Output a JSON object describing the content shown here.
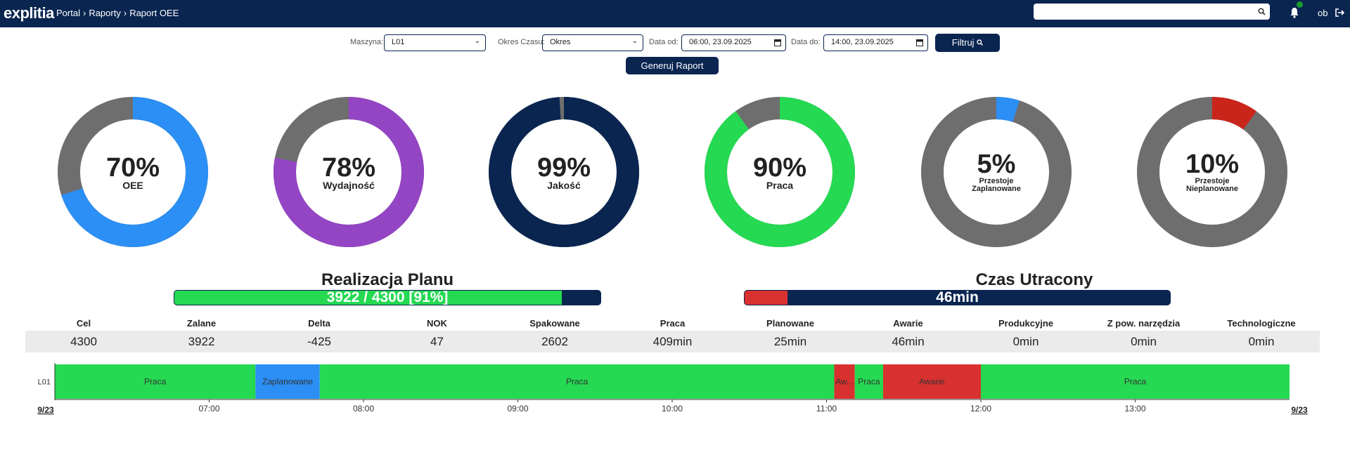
{
  "header": {
    "logo": "explitia",
    "breadcrumb": [
      "Portal",
      "Raporty",
      "Raport OEE"
    ],
    "user": "ob"
  },
  "filters": {
    "machine_label": "Maszyna:",
    "machine": "L01",
    "period_label": "Okres Czasu:",
    "period": "Okres",
    "from_label": "Data od:",
    "from": "06:00, 23.09.2025",
    "to_label": "Data do:",
    "to": "14:00, 23.09.2025",
    "filter_button": "Filtruj",
    "report_button": "Generuj Raport"
  },
  "gauges": [
    {
      "value": 70,
      "value_label": "70%",
      "label": "OEE",
      "color": "#2b8ff5"
    },
    {
      "value": 78,
      "value_label": "78%",
      "label": "Wydajność",
      "color": "#9345c4"
    },
    {
      "value": 99,
      "value_label": "99%",
      "label": "Jakość",
      "color": "#0a2550"
    },
    {
      "value": 90,
      "value_label": "90%",
      "label": "Praca",
      "color": "#25d952"
    },
    {
      "value": 5,
      "value_label": "5%",
      "label": "Przestoje Zaplanowane",
      "color": "#2b8ff5"
    },
    {
      "value": 10,
      "value_label": "10%",
      "label": "Przestoje Nieplanowane",
      "color": "#c9251a"
    }
  ],
  "plan": {
    "title": "Realizacja Planu",
    "value": 91,
    "value_label": "3922 / 4300 [91%]",
    "color": "#25d952"
  },
  "lost": {
    "title": "Czas Utracony",
    "value": 10,
    "value_label": "46min",
    "color": "#d9312f"
  },
  "stats": {
    "headers": [
      "Cel",
      "Zalane",
      "Delta",
      "NOK",
      "Spakowane",
      "Praca",
      "Planowane",
      "Awarie",
      "Produkcyjne",
      "Z pow. narzędzia",
      "Technologiczne"
    ],
    "values": [
      "4300",
      "3922",
      "-425",
      "47",
      "2602",
      "409min",
      "25min",
      "46min",
      "0min",
      "0min",
      "0min"
    ]
  },
  "timeline": {
    "row": "L01",
    "xlim": [
      "06:00",
      "14:00"
    ],
    "ticks": [
      "07:00",
      "08:00",
      "09:00",
      "10:00",
      "11:00",
      "12:00",
      "13:00"
    ],
    "edge_labels": [
      "9/23",
      "9/23"
    ],
    "segments": [
      {
        "label": "Praca",
        "start": "06:00",
        "end": "07:18",
        "color": "#25d952"
      },
      {
        "label": "Zaplanowane",
        "start": "07:18",
        "end": "07:43",
        "color": "#2b8ff5"
      },
      {
        "label": "Praca",
        "start": "07:43",
        "end": "11:03",
        "color": "#25d952"
      },
      {
        "label": "Aw...",
        "start": "11:03",
        "end": "11:11",
        "color": "#d9312f"
      },
      {
        "label": "Praca",
        "start": "11:11",
        "end": "11:22",
        "color": "#25d952"
      },
      {
        "label": "Awarie",
        "start": "11:22",
        "end": "12:00",
        "color": "#d9312f"
      },
      {
        "label": "Praca",
        "start": "12:00",
        "end": "14:00",
        "color": "#25d952"
      }
    ]
  }
}
